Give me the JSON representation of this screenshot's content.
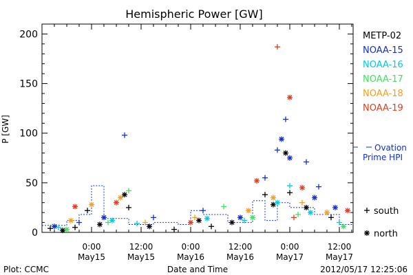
{
  "chart_data": {
    "type": "scatter",
    "title": "Hemispheric Power [GW]",
    "xlabel": "Date and Time",
    "ylabel": "P [GW]",
    "ylim": [
      0,
      210
    ],
    "xlim": [
      "2012-05-14 12:00",
      "2012-05-17 15:20"
    ],
    "y_ticks": [
      0,
      50,
      100,
      150,
      200
    ],
    "x_ticks": [
      {
        "x": "2012-05-15 00:00",
        "time": "0:00",
        "date": "May15"
      },
      {
        "x": "2012-05-15 12:00",
        "time": "12:00",
        "date": "May15"
      },
      {
        "x": "2012-05-16 00:00",
        "time": "0:00",
        "date": "May16"
      },
      {
        "x": "2012-05-16 12:00",
        "time": "12:00",
        "date": "May16"
      },
      {
        "x": "2012-05-17 00:00",
        "time": "0:00",
        "date": "May17"
      },
      {
        "x": "2012-05-17 12:00",
        "time": "12:00",
        "date": "May17"
      }
    ],
    "legend_position": "right",
    "series": [
      {
        "name": "METP-02",
        "color": "#000000",
        "points": [
          [
            "2012-05-14 14:00",
            4,
            "+"
          ],
          [
            "2012-05-14 17:00",
            2,
            "*"
          ],
          [
            "2012-05-14 20:00",
            5,
            "+"
          ],
          [
            "2012-05-14 23:00",
            22,
            "+"
          ],
          [
            "2012-05-15 02:00",
            8,
            "*"
          ],
          [
            "2012-05-15 08:00",
            38,
            "*"
          ],
          [
            "2012-05-15 09:00",
            25,
            "+"
          ],
          [
            "2012-05-15 14:00",
            6,
            "*"
          ],
          [
            "2012-05-15 20:00",
            3,
            "+"
          ],
          [
            "2012-05-16 02:00",
            12,
            "*"
          ],
          [
            "2012-05-16 05:00",
            6,
            "+"
          ],
          [
            "2012-05-16 10:00",
            10,
            "*"
          ],
          [
            "2012-05-16 18:00",
            38,
            "+"
          ],
          [
            "2012-05-16 20:00",
            28,
            "*"
          ],
          [
            "2012-05-16 23:00",
            80,
            "*"
          ],
          [
            "2012-05-17 00:00",
            40,
            "+"
          ],
          [
            "2012-05-17 04:00",
            25,
            "*"
          ],
          [
            "2012-05-17 10:00",
            15,
            "+"
          ]
        ]
      },
      {
        "name": "NOAA-15",
        "color": "#1030c8",
        "points": [
          [
            "2012-05-14 15:00",
            6,
            "*"
          ],
          [
            "2012-05-14 21:00",
            10,
            "+"
          ],
          [
            "2012-05-15 03:00",
            15,
            "*"
          ],
          [
            "2012-05-15 08:00",
            98,
            "+"
          ],
          [
            "2012-05-15 15:00",
            15,
            "+"
          ],
          [
            "2012-05-16 03:00",
            22,
            "+"
          ],
          [
            "2012-05-16 12:00",
            15,
            "*"
          ],
          [
            "2012-05-16 18:00",
            55,
            "+"
          ],
          [
            "2012-05-16 21:00",
            83,
            "+"
          ],
          [
            "2012-05-16 22:00",
            94,
            "*"
          ],
          [
            "2012-05-16 23:00",
            114,
            "+"
          ],
          [
            "2012-05-17 00:00",
            75,
            "*"
          ],
          [
            "2012-05-17 04:00",
            71,
            "+"
          ],
          [
            "2012-05-17 06:00",
            35,
            "*"
          ],
          [
            "2012-05-17 07:00",
            46,
            "+"
          ],
          [
            "2012-05-17 11:00",
            25,
            "*"
          ]
        ]
      },
      {
        "name": "NOAA-16",
        "color": "#00c8e0",
        "points": [
          [
            "2012-05-14 16:00",
            5,
            "+"
          ],
          [
            "2012-05-15 05:00",
            12,
            "*"
          ],
          [
            "2012-05-15 11:00",
            9,
            "+"
          ],
          [
            "2012-05-16 04:00",
            14,
            "*"
          ],
          [
            "2012-05-16 13:00",
            12,
            "+"
          ],
          [
            "2012-05-16 21:00",
            30,
            "*"
          ],
          [
            "2012-05-17 00:00",
            47,
            "+"
          ],
          [
            "2012-05-17 05:00",
            20,
            "*"
          ],
          [
            "2012-05-17 12:00",
            10,
            "+"
          ]
        ]
      },
      {
        "name": "NOAA-17",
        "color": "#40e060",
        "points": [
          [
            "2012-05-14 18:00",
            3,
            "*"
          ],
          [
            "2012-05-15 04:00",
            10,
            "+"
          ],
          [
            "2012-05-15 09:00",
            42,
            "+"
          ],
          [
            "2012-05-16 08:00",
            26,
            "+"
          ],
          [
            "2012-05-16 15:00",
            15,
            "*"
          ],
          [
            "2012-05-17 02:00",
            18,
            "+"
          ],
          [
            "2012-05-17 13:00",
            6,
            "*"
          ]
        ]
      },
      {
        "name": "NOAA-18",
        "color": "#f0a020",
        "points": [
          [
            "2012-05-14 19:00",
            12,
            "*"
          ],
          [
            "2012-05-15 00:00",
            28,
            "*"
          ],
          [
            "2012-05-15 07:00",
            35,
            "*"
          ],
          [
            "2012-05-15 13:00",
            10,
            "+"
          ],
          [
            "2012-05-16 01:00",
            15,
            "+"
          ],
          [
            "2012-05-16 14:00",
            22,
            "*"
          ],
          [
            "2012-05-16 20:00",
            35,
            "*"
          ],
          [
            "2012-05-17 03:00",
            30,
            "+"
          ],
          [
            "2012-05-17 09:00",
            20,
            "*"
          ]
        ]
      },
      {
        "name": "NOAA-19",
        "color": "#e03c1c",
        "points": [
          [
            "2012-05-14 20:00",
            26,
            "*"
          ],
          [
            "2012-05-15 06:00",
            30,
            "*"
          ],
          [
            "2012-05-16 00:00",
            10,
            "*"
          ],
          [
            "2012-05-16 16:00",
            52,
            "*"
          ],
          [
            "2012-05-16 21:00",
            187,
            "+"
          ],
          [
            "2012-05-17 00:00",
            136,
            "*"
          ],
          [
            "2012-05-17 01:00",
            15,
            "+"
          ],
          [
            "2012-05-17 03:00",
            45,
            "*"
          ],
          [
            "2012-05-17 14:00",
            22,
            "*"
          ]
        ]
      }
    ],
    "ovation_hpi": {
      "name": "Ovation Prime HPI",
      "color": "#1030c8",
      "legend_line1": "Ovation",
      "legend_line2": "Prime HPI",
      "steps": [
        [
          "2012-05-14 12:00",
          7
        ],
        [
          "2012-05-14 18:00",
          12
        ],
        [
          "2012-05-14 21:00",
          18
        ],
        [
          "2012-05-15 00:00",
          47
        ],
        [
          "2012-05-15 03:00",
          14
        ],
        [
          "2012-05-15 09:00",
          8
        ],
        [
          "2012-05-15 15:00",
          10
        ],
        [
          "2012-05-15 21:00",
          8
        ],
        [
          "2012-05-16 00:00",
          22
        ],
        [
          "2012-05-16 03:00",
          18
        ],
        [
          "2012-05-16 09:00",
          10
        ],
        [
          "2012-05-16 15:00",
          32
        ],
        [
          "2012-05-16 18:00",
          12
        ],
        [
          "2012-05-16 21:00",
          30
        ],
        [
          "2012-05-17 00:00",
          25
        ],
        [
          "2012-05-17 06:00",
          18
        ],
        [
          "2012-05-17 12:00",
          8
        ]
      ]
    },
    "marker_legend": [
      {
        "symbol": "+",
        "label": "south"
      },
      {
        "symbol": "*",
        "label": "north"
      }
    ]
  },
  "footer": {
    "left": "Plot: CCMC",
    "right": "2012/05/17 12:25:06"
  }
}
